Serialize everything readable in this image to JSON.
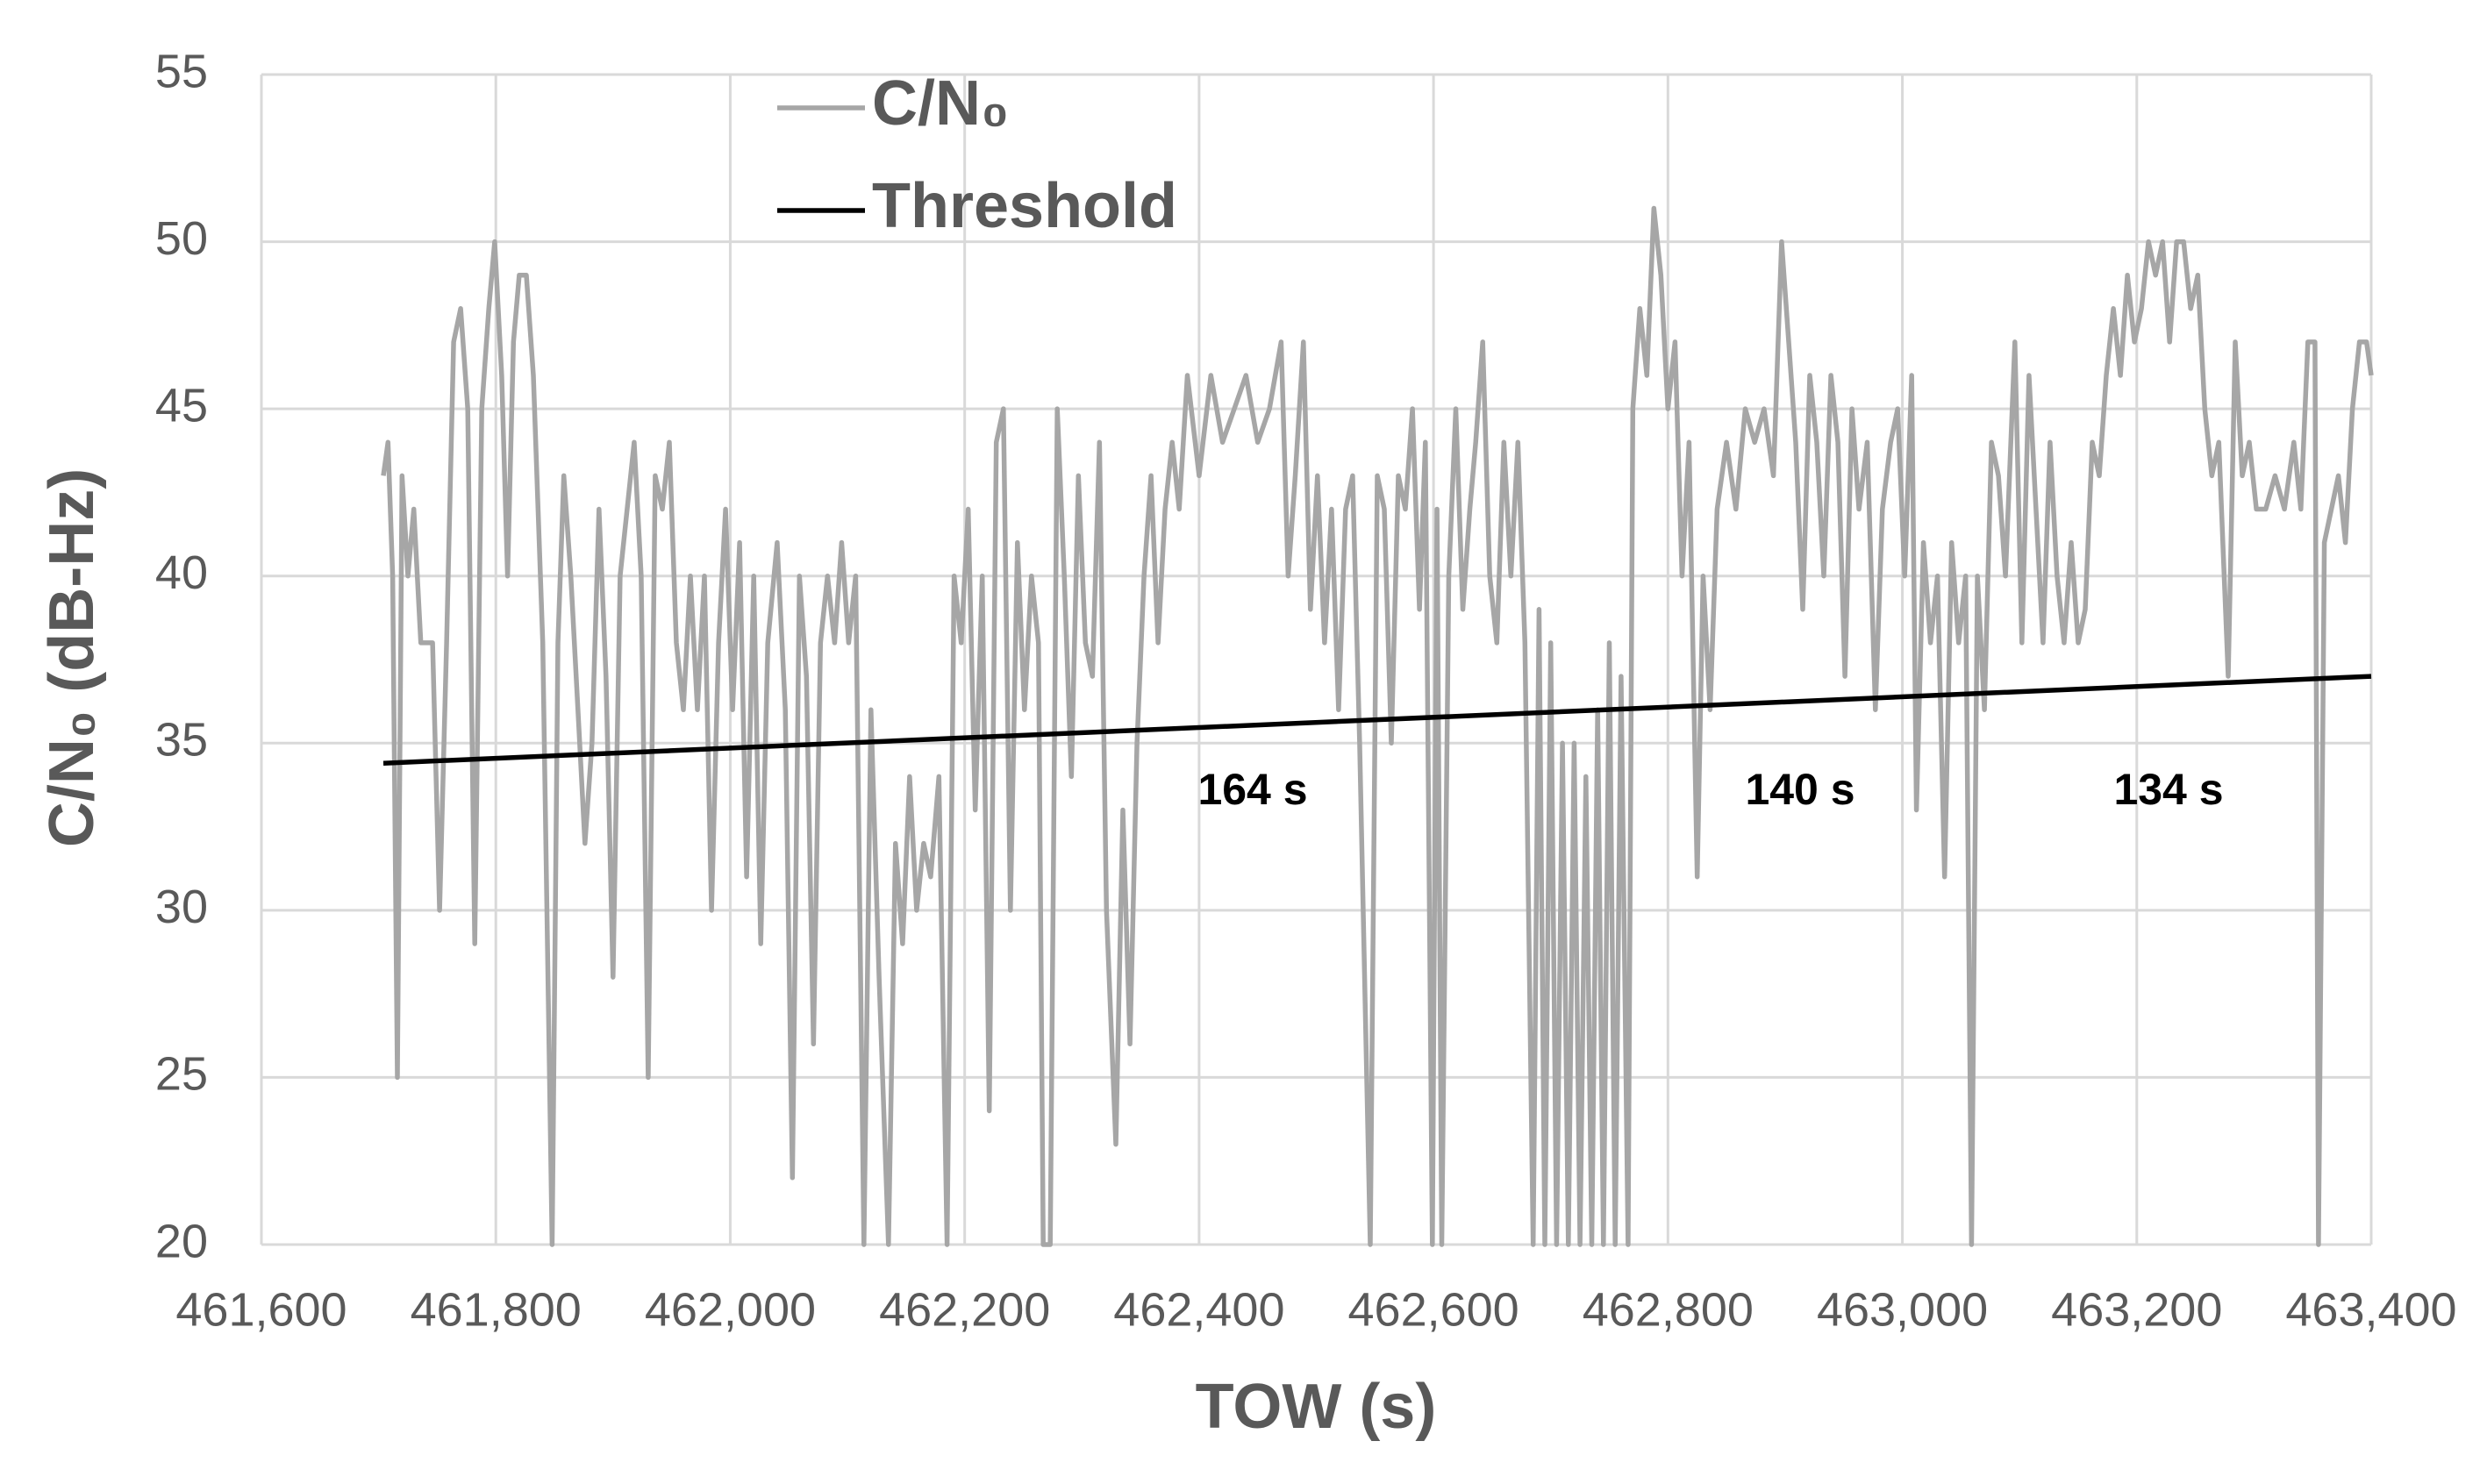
{
  "chart_data": {
    "type": "line",
    "xlabel": "TOW (s)",
    "ylabel": "C/N₀ (dB-Hz)",
    "xlim": [
      461600,
      463400
    ],
    "ylim": [
      20,
      55
    ],
    "xticks": [
      {
        "value": 461600,
        "label": "461,600"
      },
      {
        "value": 461800,
        "label": "461,800"
      },
      {
        "value": 462000,
        "label": "462,000"
      },
      {
        "value": 462200,
        "label": "462,200"
      },
      {
        "value": 462400,
        "label": "462,400"
      },
      {
        "value": 462600,
        "label": "462,600"
      },
      {
        "value": 462800,
        "label": "462,800"
      },
      {
        "value": 463000,
        "label": "463,000"
      },
      {
        "value": 463200,
        "label": "463,200"
      },
      {
        "value": 463400,
        "label": "463,400"
      }
    ],
    "yticks": [
      20,
      25,
      30,
      35,
      40,
      45,
      50,
      55
    ],
    "grid": true,
    "legend": "top-left",
    "annotations": [
      "164 s",
      "140 s",
      "134 s"
    ],
    "series": [
      {
        "name": "C/N₀",
        "color": "#a6a6a6",
        "x": [
          461704,
          461708,
          461712,
          461716,
          461720,
          461725,
          461730,
          461736,
          461746,
          461752,
          461758,
          461764,
          461770,
          461776,
          461782,
          461788,
          461794,
          461799,
          461805,
          461810,
          461815,
          461820,
          461826,
          461832,
          461840,
          461848,
          461853,
          461858,
          461864,
          461870,
          461876,
          461882,
          461888,
          461894,
          461900,
          461906,
          461912,
          461918,
          461924,
          461930,
          461936,
          461942,
          461948,
          461954,
          461960,
          461966,
          461972,
          461978,
          461984,
          461990,
          461996,
          462002,
          462008,
          462014,
          462020,
          462026,
          462032,
          462040,
          462047,
          462053,
          462059,
          462065,
          462071,
          462077,
          462083,
          462089,
          462095,
          462101,
          462107,
          462114,
          462120,
          462127,
          462135,
          462141,
          462147,
          462153,
          462159,
          462165,
          462171,
          462178,
          462185,
          462191,
          462197,
          462203,
          462209,
          462215,
          462221,
          462227,
          462233,
          462239,
          462245,
          462251,
          462257,
          462263,
          462267,
          462273,
          462279,
          462285,
          462291,
          462297,
          462303,
          462309,
          462315,
          462321,
          462329,
          462335,
          462341,
          462347,
          462353,
          462359,
          462365,
          462371,
          462377,
          462383,
          462390,
          462400,
          462410,
          462420,
          462430,
          462440,
          462450,
          462460,
          462470,
          462476,
          462482,
          462489,
          462495,
          462501,
          462507,
          462513,
          462519,
          462525,
          462531,
          462537,
          462546,
          462552,
          462558,
          462564,
          462570,
          462576,
          462582,
          462588,
          462593,
          462599,
          462603,
          462607,
          462613,
          462619,
          462625,
          462631,
          462636,
          462642,
          462648,
          462654,
          462660,
          462666,
          462672,
          462678,
          462685,
          462690,
          462695,
          462700,
          462705,
          462710,
          462715,
          462720,
          462725,
          462730,
          462735,
          462740,
          462745,
          462750,
          462755,
          462760,
          462766,
          462770,
          462776,
          462782,
          462788,
          462794,
          462800,
          462806,
          462812,
          462818,
          462825,
          462830,
          462836,
          462842,
          462850,
          462858,
          462866,
          462874,
          462882,
          462890,
          462897,
          462903,
          462909,
          462915,
          462921,
          462927,
          462933,
          462939,
          462945,
          462951,
          462957,
          462963,
          462970,
          462977,
          462983,
          462990,
          462996,
          463002,
          463008,
          463012,
          463018,
          463024,
          463030,
          463036,
          463042,
          463048,
          463054,
          463059,
          463064,
          463070,
          463076,
          463082,
          463088,
          463096,
          463102,
          463108,
          463114,
          463120,
          463126,
          463132,
          463138,
          463144,
          463150,
          463156,
          463162,
          463168,
          463174,
          463180,
          463186,
          463192,
          463198,
          463204,
          463210,
          463216,
          463222,
          463228,
          463234,
          463240,
          463246,
          463252,
          463258,
          463264,
          463270,
          463278,
          463284,
          463290,
          463296,
          463302,
          463310,
          463318,
          463326,
          463334,
          463340,
          463346,
          463352,
          463355,
          463360,
          463366,
          463372,
          463378,
          463384,
          463390,
          463396,
          463400
        ],
        "values": [
          43,
          44,
          40,
          25,
          43,
          40,
          42,
          38,
          38,
          30,
          38,
          47,
          48,
          45,
          29,
          45,
          48,
          50,
          46,
          40,
          47,
          49,
          49,
          46,
          38,
          20,
          38,
          43,
          40,
          36,
          32,
          35,
          42,
          37,
          28,
          40,
          42,
          44,
          40,
          25,
          43,
          42,
          44,
          38,
          36,
          40,
          36,
          40,
          30,
          38,
          42,
          36,
          41,
          31,
          40,
          29,
          38,
          41,
          36,
          22,
          40,
          37,
          26,
          38,
          40,
          38,
          41,
          38,
          40,
          20,
          36,
          28,
          20,
          32,
          29,
          34,
          30,
          32,
          31,
          34,
          20,
          40,
          38,
          42,
          33,
          40,
          24,
          44,
          45,
          30,
          41,
          36,
          40,
          38,
          20,
          20,
          45,
          40,
          34,
          43,
          38,
          37,
          44,
          30,
          23,
          33,
          26,
          35,
          40,
          43,
          38,
          42,
          44,
          42,
          46,
          43,
          46,
          44,
          45,
          46,
          44,
          45,
          47,
          40,
          43,
          47,
          39,
          43,
          38,
          42,
          36,
          42,
          43,
          35,
          20,
          43,
          42,
          35,
          43,
          42,
          45,
          39,
          44,
          20,
          42,
          20,
          40,
          45,
          39,
          42,
          44,
          47,
          40,
          38,
          44,
          40,
          44,
          38,
          20,
          39,
          20,
          38,
          20,
          35,
          20,
          35,
          20,
          34,
          20,
          36,
          20,
          38,
          20,
          37,
          20,
          45,
          48,
          46,
          51,
          49,
          45,
          47,
          40,
          44,
          31,
          40,
          36,
          42,
          44,
          42,
          45,
          44,
          45,
          43,
          50,
          47,
          44,
          39,
          46,
          44,
          40,
          46,
          44,
          37,
          45,
          42,
          44,
          36,
          42,
          44,
          45,
          40,
          46,
          33,
          41,
          38,
          40,
          31,
          41,
          38,
          40,
          20,
          40,
          36,
          44,
          43,
          40,
          47,
          38,
          46,
          42,
          38,
          44,
          40,
          38,
          41,
          38,
          39,
          44,
          43,
          46,
          48,
          46,
          49,
          47,
          48,
          50,
          49,
          50,
          47,
          50,
          50,
          48,
          49,
          45,
          43,
          44,
          37,
          47,
          43,
          44,
          42,
          42,
          43,
          42,
          44,
          42,
          47,
          47,
          20,
          41,
          42,
          43,
          41,
          45,
          47,
          47,
          46
        ]
      },
      {
        "name": "Threshold",
        "color": "#000000",
        "x": [
          461704,
          463400
        ],
        "values": [
          34.4,
          37.0
        ]
      }
    ]
  }
}
